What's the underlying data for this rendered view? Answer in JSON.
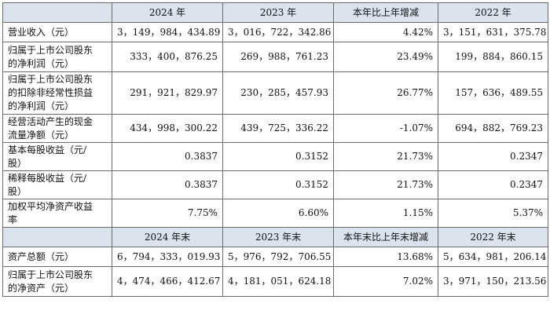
{
  "header1": [
    "",
    "2024 年",
    "2023 年",
    "本年比上年增减",
    "2022 年"
  ],
  "rows1": [
    {
      "label": [
        "营业收入（元）"
      ],
      "v": [
        "3，149，984，434.89",
        "3，016，722，342.86",
        "4.42%",
        "3，151，631，375.78"
      ],
      "h": "h1"
    },
    {
      "label": [
        "归属于上市公司股东",
        "的净利润（元）"
      ],
      "v": [
        "333，400，876.25",
        "269，988，761.23",
        "23.49%",
        "199，884，860.15"
      ],
      "h": "h2"
    },
    {
      "label": [
        "归属于上市公司股东",
        "的扣除非经常性损益",
        "的净利润（元）"
      ],
      "v": [
        "291，921，829.97",
        "230，285，457.93",
        "26.77%",
        "157，636，489.55"
      ],
      "h": "h3"
    },
    {
      "label": [
        "经营活动产生的现金",
        "流量净额（元）"
      ],
      "v": [
        "434，998，300.22",
        "439，725，336.22",
        "-1.07%",
        "694，882，769.23"
      ],
      "h": "h4"
    },
    {
      "label": [
        "基本每股收益（元/",
        "股）"
      ],
      "v": [
        "0.3837",
        "0.3152",
        "21.73%",
        "0.2347"
      ],
      "h": "h4"
    },
    {
      "label": [
        "稀释每股收益（元/",
        "股）"
      ],
      "v": [
        "0.3837",
        "0.3152",
        "21.73%",
        "0.2347"
      ],
      "h": "h4"
    },
    {
      "label": [
        "加权平均净资产收益",
        "率"
      ],
      "v": [
        "7.75%",
        "6.60%",
        "1.15%",
        "5.37%"
      ],
      "h": "h4"
    }
  ],
  "header2": [
    "",
    "2024 年末",
    "2023 年末",
    "本年末比上年末增减",
    "2022 年末"
  ],
  "rows2": [
    {
      "label": [
        "资产总额（元）"
      ],
      "v": [
        "6，794，333，019.93",
        "5，976，792，706.55",
        "13.68%",
        "5，634，981，206.14"
      ],
      "h": "h1"
    },
    {
      "label": [
        "归属于上市公司股东",
        "的净资产（元）"
      ],
      "v": [
        "4，474，466，412.67",
        "4，181，051，624.18",
        "7.02%",
        "3，971，150，213.56"
      ],
      "h": "h2"
    }
  ]
}
